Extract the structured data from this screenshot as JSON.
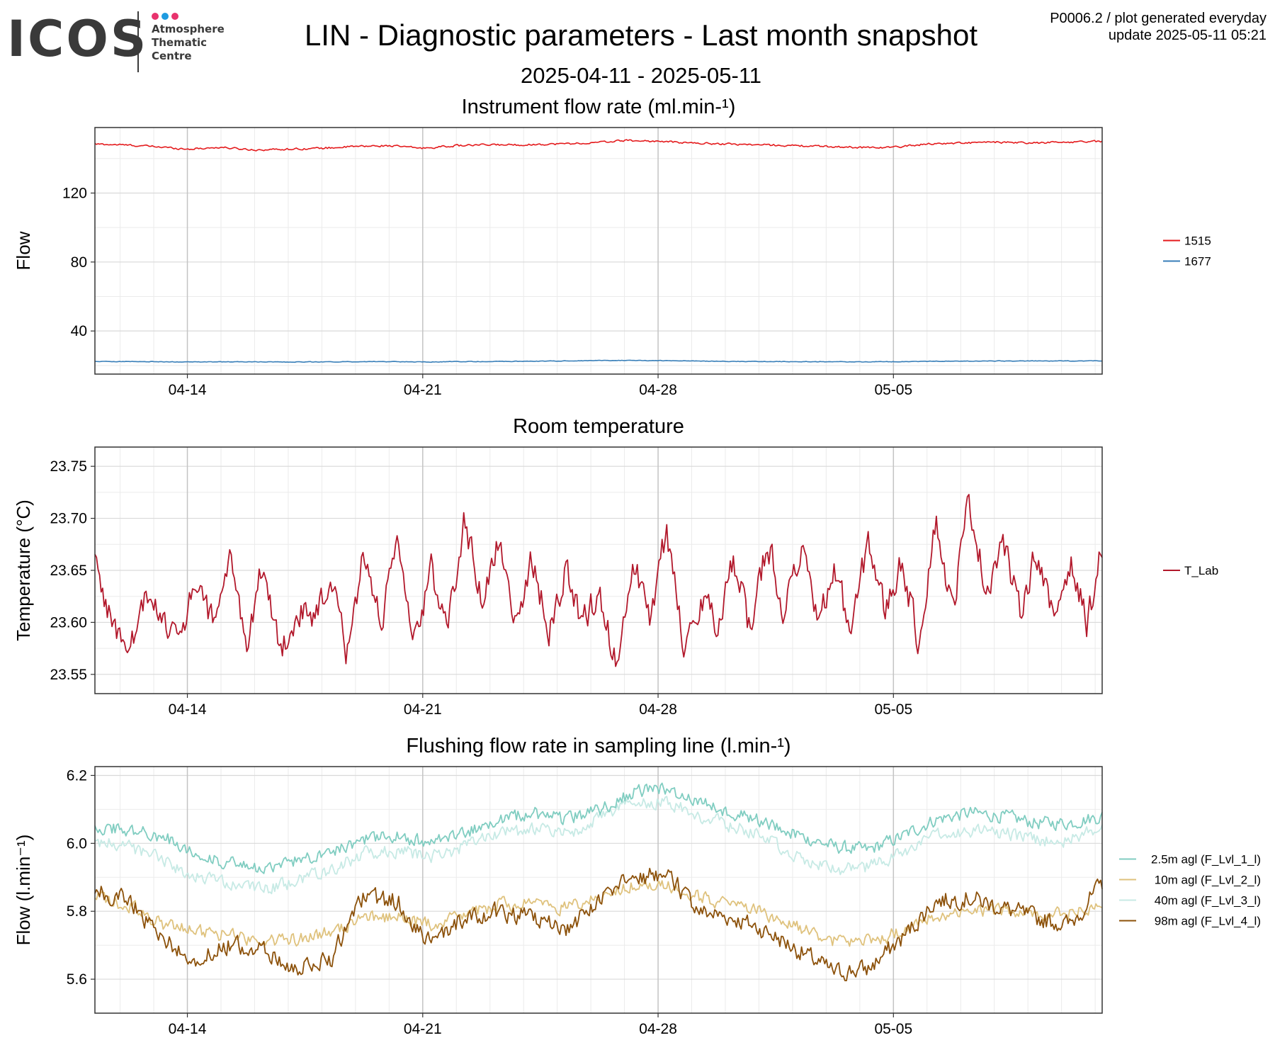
{
  "logo": {
    "word": "ICOS",
    "lines": [
      "Atmosphere",
      "Thematic",
      "Centre"
    ],
    "dot_colors": [
      "#e8336d",
      "#1e9be0",
      "#e8336d"
    ]
  },
  "header": {
    "title": "LIN - Diagnostic parameters - Last month snapshot",
    "subtitle": "2025-04-11 - 2025-05-11",
    "corner_line1": "P0006.2 / plot generated everyday",
    "corner_line2": "update  2025-05-11 05:21"
  },
  "chart_data": [
    {
      "type": "line",
      "title": "Instrument flow rate (ml.min-¹)",
      "xlabel": "",
      "ylabel": "Flow",
      "x_range": [
        "2025-04-11T06:00",
        "2025-05-11T05:00"
      ],
      "xticks": [
        "04-14",
        "04-21",
        "04-28",
        "05-05"
      ],
      "xtick_dates": [
        "2025-04-14",
        "2025-04-21",
        "2025-04-28",
        "2025-05-05"
      ],
      "yticks": [
        40,
        80,
        120
      ],
      "ylim": [
        15,
        158
      ],
      "grid": true,
      "legend_position": "right",
      "series": [
        {
          "name": "1515",
          "color": "#e41a1c",
          "x": [
            "2025-04-11",
            "2025-04-12",
            "2025-04-13",
            "2025-04-14",
            "2025-04-15",
            "2025-04-16",
            "2025-04-17",
            "2025-04-18",
            "2025-04-19",
            "2025-04-20",
            "2025-04-21",
            "2025-04-22",
            "2025-04-23",
            "2025-04-24",
            "2025-04-25",
            "2025-04-26",
            "2025-04-27",
            "2025-04-28",
            "2025-04-29",
            "2025-04-30",
            "2025-05-01",
            "2025-05-02",
            "2025-05-03",
            "2025-05-04",
            "2025-05-05",
            "2025-05-06",
            "2025-05-07",
            "2025-05-08",
            "2025-05-09",
            "2025-05-10",
            "2025-05-11"
          ],
          "values": [
            148.5,
            148.0,
            147.0,
            145.5,
            146.5,
            145.0,
            145.5,
            146.0,
            147.0,
            147.5,
            146.0,
            147.5,
            148.0,
            148.0,
            148.5,
            149.0,
            150.5,
            150.0,
            149.0,
            148.5,
            148.0,
            147.5,
            147.0,
            146.5,
            146.5,
            148.5,
            149.0,
            149.5,
            149.0,
            149.5,
            150.0
          ]
        },
        {
          "name": "1677",
          "color": "#377eb8",
          "x": [
            "2025-04-11",
            "2025-04-12",
            "2025-04-13",
            "2025-04-14",
            "2025-04-15",
            "2025-04-16",
            "2025-04-17",
            "2025-04-18",
            "2025-04-19",
            "2025-04-20",
            "2025-04-21",
            "2025-04-22",
            "2025-04-23",
            "2025-04-24",
            "2025-04-25",
            "2025-04-26",
            "2025-04-27",
            "2025-04-28",
            "2025-04-29",
            "2025-04-30",
            "2025-05-01",
            "2025-05-02",
            "2025-05-03",
            "2025-05-04",
            "2025-05-05",
            "2025-05-06",
            "2025-05-07",
            "2025-05-08",
            "2025-05-09",
            "2025-05-10",
            "2025-05-11"
          ],
          "values": [
            22.3,
            22.3,
            22.2,
            22.0,
            22.1,
            22.1,
            22.0,
            22.1,
            22.2,
            22.2,
            22.0,
            22.2,
            22.3,
            22.4,
            22.6,
            22.8,
            22.9,
            22.8,
            22.6,
            22.4,
            22.3,
            22.2,
            22.2,
            22.1,
            22.2,
            22.4,
            22.5,
            22.6,
            22.6,
            22.6,
            22.7
          ]
        }
      ]
    },
    {
      "type": "line",
      "title": "Room temperature",
      "xlabel": "",
      "ylabel": "Temperature (°C)",
      "x_range": [
        "2025-04-11T06:00",
        "2025-05-11T05:00"
      ],
      "xticks": [
        "04-14",
        "04-21",
        "04-28",
        "05-05"
      ],
      "xtick_dates": [
        "2025-04-14",
        "2025-04-21",
        "2025-04-28",
        "2025-05-05"
      ],
      "yticks": [
        23.55,
        23.6,
        23.65,
        23.7,
        23.75
      ],
      "ytick_labels": [
        "23.55",
        "23.60",
        "23.65",
        "23.70",
        "23.75"
      ],
      "ylim": [
        23.5315,
        23.7685
      ],
      "grid": true,
      "legend_position": "right",
      "series": [
        {
          "name": "T_Lab",
          "color": "#b2182b",
          "x": [
            "2025-04-11T06:00",
            "2025-04-11T18:00",
            "2025-04-12T06:00",
            "2025-04-12T18:00",
            "2025-04-13T06:00",
            "2025-04-13T18:00",
            "2025-04-14T06:00",
            "2025-04-14T18:00",
            "2025-04-15T06:00",
            "2025-04-15T18:00",
            "2025-04-16T06:00",
            "2025-04-16T18:00",
            "2025-04-17T06:00",
            "2025-04-17T18:00",
            "2025-04-18T06:00",
            "2025-04-18T18:00",
            "2025-04-19T06:00",
            "2025-04-19T18:00",
            "2025-04-20T06:00",
            "2025-04-20T18:00",
            "2025-04-21T06:00",
            "2025-04-21T18:00",
            "2025-04-22T06:00",
            "2025-04-22T18:00",
            "2025-04-23T06:00",
            "2025-04-23T18:00",
            "2025-04-24T06:00",
            "2025-04-24T18:00",
            "2025-04-25T06:00",
            "2025-04-25T18:00",
            "2025-04-26T06:00",
            "2025-04-26T18:00",
            "2025-04-27T06:00",
            "2025-04-27T18:00",
            "2025-04-28T06:00",
            "2025-04-28T18:00",
            "2025-04-29T06:00",
            "2025-04-29T18:00",
            "2025-04-30T06:00",
            "2025-04-30T18:00",
            "2025-05-01T06:00",
            "2025-05-01T18:00",
            "2025-05-02T06:00",
            "2025-05-02T18:00",
            "2025-05-03T06:00",
            "2025-05-03T18:00",
            "2025-05-04T06:00",
            "2025-05-04T18:00",
            "2025-05-05T06:00",
            "2025-05-05T18:00",
            "2025-05-06T06:00",
            "2025-05-06T18:00",
            "2025-05-07T06:00",
            "2025-05-07T18:00",
            "2025-05-08T06:00",
            "2025-05-08T18:00",
            "2025-05-09T06:00",
            "2025-05-09T18:00",
            "2025-05-10T06:00",
            "2025-05-10T18:00",
            "2025-05-11T05:00"
          ],
          "values": [
            23.66,
            23.6,
            23.57,
            23.62,
            23.61,
            23.58,
            23.64,
            23.6,
            23.66,
            23.58,
            23.66,
            23.57,
            23.61,
            23.6,
            23.64,
            23.57,
            23.67,
            23.6,
            23.67,
            23.58,
            23.65,
            23.6,
            23.7,
            23.62,
            23.68,
            23.6,
            23.66,
            23.59,
            23.65,
            23.6,
            23.63,
            23.56,
            23.66,
            23.6,
            23.69,
            23.58,
            23.62,
            23.6,
            23.66,
            23.59,
            23.68,
            23.61,
            23.67,
            23.6,
            23.65,
            23.59,
            23.68,
            23.61,
            23.66,
            23.58,
            23.7,
            23.61,
            23.72,
            23.63,
            23.68,
            23.61,
            23.67,
            23.6,
            23.66,
            23.6,
            23.67
          ]
        }
      ]
    },
    {
      "type": "line",
      "title": "Flushing flow rate in sampling line (l.min-¹)",
      "xlabel": "",
      "ylabel": "Flow (l.min⁻¹)",
      "x_range": [
        "2025-04-11T06:00",
        "2025-05-11T05:00"
      ],
      "xticks": [
        "04-14",
        "04-21",
        "04-28",
        "05-05"
      ],
      "xtick_dates": [
        "2025-04-14",
        "2025-04-21",
        "2025-04-28",
        "2025-05-05"
      ],
      "yticks": [
        5.6,
        5.8,
        6.0,
        6.2
      ],
      "ytick_labels": [
        "5.6",
        "5.8",
        "6.0",
        "6.2"
      ],
      "ylim": [
        5.5,
        6.226
      ],
      "grid": true,
      "legend_position": "right",
      "series": [
        {
          "name": "2.5m agl (F_Lvl_1_l)",
          "color": "#80cdc1",
          "x": [
            "2025-04-11T06:00",
            "2025-04-12T06:00",
            "2025-04-13T06:00",
            "2025-04-14T06:00",
            "2025-04-15T06:00",
            "2025-04-16T06:00",
            "2025-04-17T06:00",
            "2025-04-18T06:00",
            "2025-04-19T06:00",
            "2025-04-20T06:00",
            "2025-04-21T06:00",
            "2025-04-22T06:00",
            "2025-04-23T06:00",
            "2025-04-24T06:00",
            "2025-04-25T06:00",
            "2025-04-26T06:00",
            "2025-04-27T06:00",
            "2025-04-28T06:00",
            "2025-04-29T06:00",
            "2025-04-30T06:00",
            "2025-05-01T06:00",
            "2025-05-02T06:00",
            "2025-05-03T06:00",
            "2025-05-04T06:00",
            "2025-05-05T06:00",
            "2025-05-06T06:00",
            "2025-05-07T06:00",
            "2025-05-08T06:00",
            "2025-05-09T06:00",
            "2025-05-10T06:00",
            "2025-05-11T05:00"
          ],
          "values": [
            6.05,
            6.04,
            6.02,
            5.97,
            5.94,
            5.92,
            5.95,
            5.98,
            6.01,
            6.02,
            6.0,
            6.03,
            6.07,
            6.09,
            6.07,
            6.1,
            6.15,
            6.16,
            6.12,
            6.09,
            6.06,
            6.02,
            5.99,
            5.98,
            6.02,
            6.07,
            6.09,
            6.08,
            6.06,
            6.06,
            6.08
          ]
        },
        {
          "name": "10m agl (F_Lvl_2_l)",
          "color": "#dfc27d",
          "x": [
            "2025-04-11T06:00",
            "2025-04-12T06:00",
            "2025-04-13T06:00",
            "2025-04-14T06:00",
            "2025-04-15T06:00",
            "2025-04-16T06:00",
            "2025-04-17T06:00",
            "2025-04-18T06:00",
            "2025-04-19T06:00",
            "2025-04-20T06:00",
            "2025-04-21T06:00",
            "2025-04-22T06:00",
            "2025-04-23T06:00",
            "2025-04-24T06:00",
            "2025-04-25T06:00",
            "2025-04-26T06:00",
            "2025-04-27T06:00",
            "2025-04-28T06:00",
            "2025-04-29T06:00",
            "2025-04-30T06:00",
            "2025-05-01T06:00",
            "2025-05-02T06:00",
            "2025-05-03T06:00",
            "2025-05-04T06:00",
            "2025-05-05T06:00",
            "2025-05-06T06:00",
            "2025-05-07T06:00",
            "2025-05-08T06:00",
            "2025-05-09T06:00",
            "2025-05-10T06:00",
            "2025-05-11T05:00"
          ],
          "values": [
            5.84,
            5.82,
            5.76,
            5.74,
            5.73,
            5.71,
            5.72,
            5.74,
            5.78,
            5.78,
            5.76,
            5.79,
            5.82,
            5.82,
            5.81,
            5.84,
            5.88,
            5.88,
            5.84,
            5.82,
            5.79,
            5.75,
            5.71,
            5.71,
            5.74,
            5.79,
            5.8,
            5.8,
            5.79,
            5.8,
            5.82
          ]
        },
        {
          "name": "40m agl (F_Lvl_3_l)",
          "color": "#c7eae5",
          "x": [
            "2025-04-11T06:00",
            "2025-04-12T06:00",
            "2025-04-13T06:00",
            "2025-04-14T06:00",
            "2025-04-15T06:00",
            "2025-04-16T06:00",
            "2025-04-17T06:00",
            "2025-04-18T06:00",
            "2025-04-19T06:00",
            "2025-04-20T06:00",
            "2025-04-21T06:00",
            "2025-04-22T06:00",
            "2025-04-23T06:00",
            "2025-04-24T06:00",
            "2025-04-25T06:00",
            "2025-04-26T06:00",
            "2025-04-27T06:00",
            "2025-04-28T06:00",
            "2025-04-29T06:00",
            "2025-04-30T06:00",
            "2025-05-01T06:00",
            "2025-05-02T06:00",
            "2025-05-03T06:00",
            "2025-05-04T06:00",
            "2025-05-05T06:00",
            "2025-05-06T06:00",
            "2025-05-07T06:00",
            "2025-05-08T06:00",
            "2025-05-09T06:00",
            "2025-05-10T06:00",
            "2025-05-11T05:00"
          ],
          "values": [
            6.01,
            5.99,
            5.95,
            5.9,
            5.88,
            5.86,
            5.89,
            5.92,
            5.97,
            5.98,
            5.96,
            5.99,
            6.03,
            6.04,
            6.03,
            6.07,
            6.12,
            6.12,
            6.08,
            6.05,
            6.01,
            5.96,
            5.92,
            5.93,
            5.97,
            6.02,
            6.04,
            6.03,
            6.01,
            6.01,
            6.05
          ]
        },
        {
          "name": "98m agl (F_Lvl_4_l)",
          "color": "#8c510a",
          "x": [
            "2025-04-11T06:00",
            "2025-04-12T06:00",
            "2025-04-13T06:00",
            "2025-04-14T06:00",
            "2025-04-15T06:00",
            "2025-04-16T06:00",
            "2025-04-17T06:00",
            "2025-04-18T06:00",
            "2025-04-19T06:00",
            "2025-04-20T06:00",
            "2025-04-21T06:00",
            "2025-04-22T06:00",
            "2025-04-23T06:00",
            "2025-04-24T06:00",
            "2025-04-25T06:00",
            "2025-04-26T06:00",
            "2025-04-27T06:00",
            "2025-04-28T06:00",
            "2025-04-29T06:00",
            "2025-04-30T06:00",
            "2025-05-01T06:00",
            "2025-05-02T06:00",
            "2025-05-03T06:00",
            "2025-05-04T06:00",
            "2025-05-05T06:00",
            "2025-05-06T06:00",
            "2025-05-07T06:00",
            "2025-05-08T06:00",
            "2025-05-09T06:00",
            "2025-05-10T06:00",
            "2025-05-11T05:00"
          ],
          "values": [
            5.86,
            5.83,
            5.72,
            5.66,
            5.7,
            5.68,
            5.63,
            5.66,
            5.84,
            5.83,
            5.7,
            5.78,
            5.8,
            5.78,
            5.74,
            5.83,
            5.9,
            5.91,
            5.8,
            5.78,
            5.74,
            5.68,
            5.62,
            5.63,
            5.72,
            5.83,
            5.84,
            5.81,
            5.78,
            5.76,
            5.88
          ]
        }
      ]
    }
  ]
}
